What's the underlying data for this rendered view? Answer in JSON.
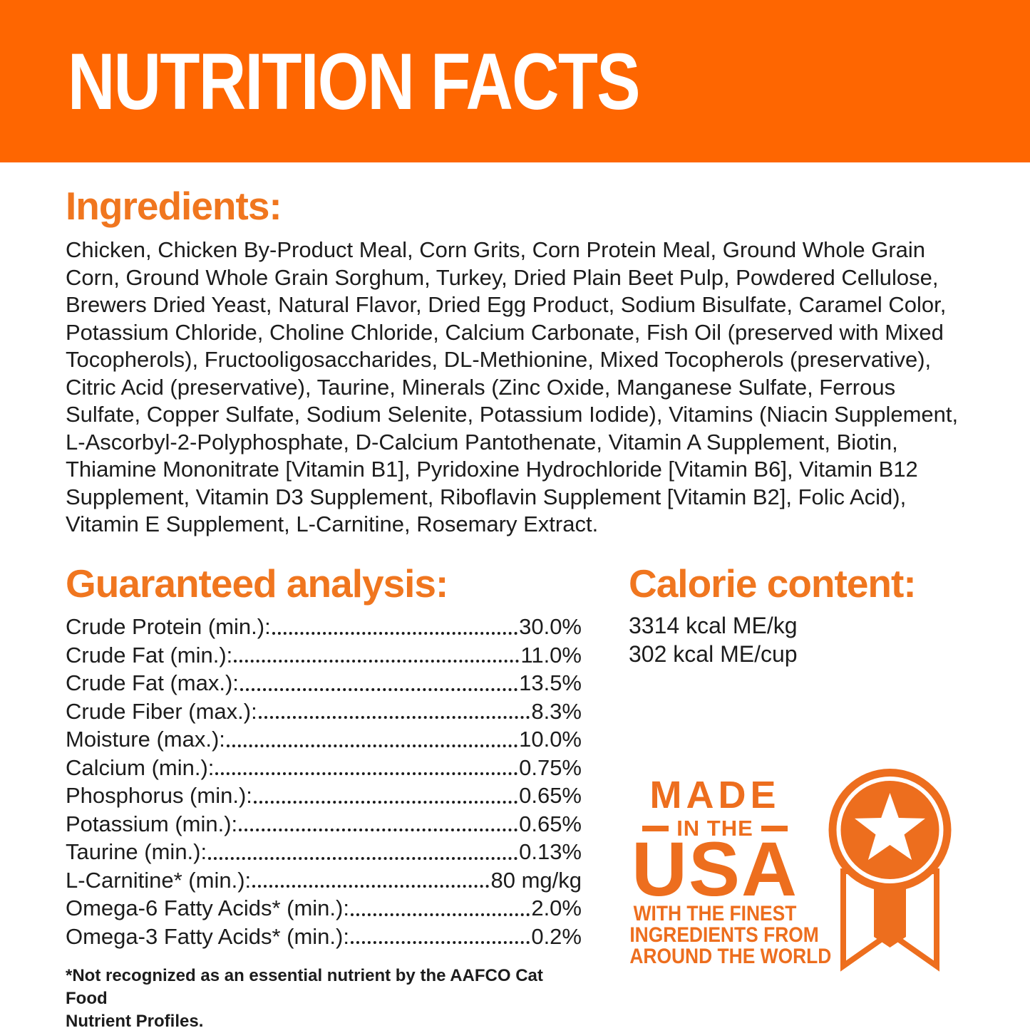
{
  "banner": {
    "title": "NUTRITION FACTS"
  },
  "colors": {
    "banner_orange": "#fe6601",
    "heading_orange": "#f0761f",
    "badge_orange": "#ed6e1e",
    "body_text": "#1c1c1c"
  },
  "ingredients": {
    "heading": "Ingredients:",
    "text": "Chicken, Chicken By-Product Meal, Corn Grits, Corn Protein Meal, Ground Whole Grain Corn, Ground Whole Grain Sorghum, Turkey, Dried Plain Beet Pulp, Powdered Cellulose, Brewers Dried Yeast, Natural Flavor, Dried Egg Product, Sodium Bisulfate, Caramel Color, Potassium Chloride, Choline Chloride, Calcium Carbonate, Fish Oil (preserved with Mixed Tocopherols), Fructooligosaccharides, DL-Methionine, Mixed Tocopherols (preservative), Citric Acid (preservative), Taurine, Minerals (Zinc Oxide, Manganese Sulfate, Ferrous Sulfate, Copper Sulfate, Sodium Selenite, Potassium Iodide), Vitamins (Niacin Supplement, L-Ascorbyl-2-Polyphosphate, D-Calcium Pantothenate, Vitamin A Supplement, Biotin, Thiamine Mononitrate [Vitamin B1], Pyridoxine Hydrochloride [Vitamin B6], Vitamin B12 Supplement, Vitamin D3 Supplement, Riboflavin Supplement [Vitamin B2], Folic Acid), Vitamin E Supplement, L-Carnitine, Rosemary Extract."
  },
  "analysis": {
    "heading": "Guaranteed analysis:",
    "rows": [
      {
        "label": "Crude Protein (min.):",
        "value": "30.0%"
      },
      {
        "label": "Crude Fat (min.):",
        "value": "11.0%"
      },
      {
        "label": "Crude Fat (max.):",
        "value": "13.5%"
      },
      {
        "label": "Crude Fiber (max.):",
        "value": "8.3%"
      },
      {
        "label": "Moisture (max.):",
        "value": "10.0%"
      },
      {
        "label": "Calcium (min.):",
        "value": "0.75%"
      },
      {
        "label": "Phosphorus (min.):",
        "value": "0.65%"
      },
      {
        "label": "Potassium (min.):",
        "value": "0.65%"
      },
      {
        "label": "Taurine (min.):",
        "value": "0.13%"
      },
      {
        "label": "L-Carnitine* (min.):",
        "value": "80 mg/kg"
      },
      {
        "label": "Omega-6 Fatty Acids* (min.):",
        "value": "2.0%"
      },
      {
        "label": "Omega-3 Fatty Acids* (min.):",
        "value": "0.2%"
      }
    ]
  },
  "calories": {
    "heading": "Calorie content:",
    "lines": [
      "3314 kcal ME/kg",
      "302 kcal ME/cup"
    ]
  },
  "badge": {
    "line1": "MADE",
    "line2": "IN THE",
    "line3": "USA",
    "sub_lines": [
      "WITH THE FINEST",
      "INGREDIENTS FROM",
      "AROUND THE WORLD"
    ],
    "icon": "award-ribbon-star-icon"
  },
  "footnote": {
    "line1": "*Not recognized as an essential nutrient by the AAFCO Cat Food",
    "line2": "Nutrient Profiles."
  }
}
